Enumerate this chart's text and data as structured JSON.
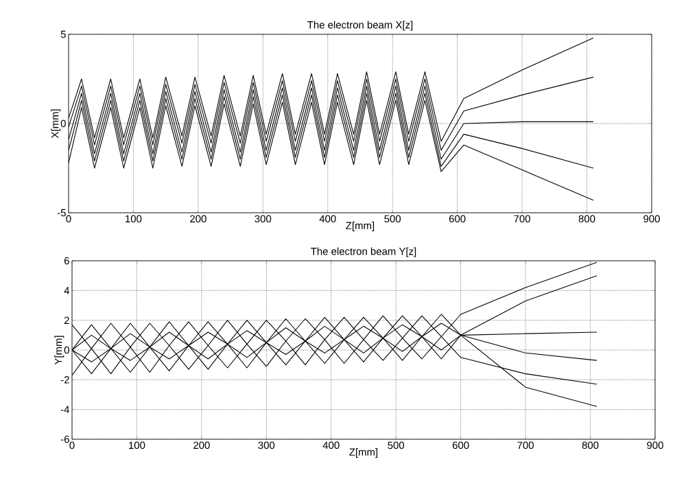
{
  "chart_data": [
    {
      "type": "line",
      "title": "The electron beam X[z]",
      "xlabel": "Z[mm]",
      "ylabel": "X[mm]",
      "xlim": [
        0,
        900
      ],
      "ylim": [
        -5,
        5
      ],
      "xticks": [
        0,
        100,
        200,
        300,
        400,
        500,
        600,
        700,
        800,
        900
      ],
      "yticks": [
        -5,
        0,
        5
      ],
      "grid": true,
      "x": [
        0,
        20,
        40,
        65,
        85,
        110,
        130,
        150,
        175,
        195,
        220,
        240,
        265,
        285,
        305,
        330,
        350,
        375,
        395,
        415,
        440,
        460,
        480,
        505,
        525,
        550,
        575,
        610,
        700,
        810
      ],
      "series": [
        {
          "color": "#000000",
          "values": [
            0.3,
            2.5,
            -0.8,
            2.5,
            -0.8,
            2.5,
            -0.8,
            2.6,
            -0.7,
            2.6,
            -0.7,
            2.7,
            -0.7,
            2.7,
            -0.6,
            2.8,
            -0.6,
            2.8,
            -0.6,
            2.8,
            -0.6,
            2.9,
            -0.6,
            2.9,
            -0.6,
            2.9,
            -1.0,
            1.4,
            3.0,
            4.8
          ]
        },
        {
          "color": "#000000",
          "values": [
            -0.2,
            2.1,
            -1.2,
            2.1,
            -1.2,
            2.1,
            -1.2,
            2.2,
            -1.1,
            2.2,
            -1.1,
            2.3,
            -1.1,
            2.3,
            -1.0,
            2.4,
            -1.0,
            2.4,
            -1.0,
            2.4,
            -1.0,
            2.5,
            -1.0,
            2.5,
            -1.0,
            2.5,
            -1.5,
            0.7,
            1.6,
            2.6
          ]
        },
        {
          "color": "#000000",
          "values": [
            -0.9,
            1.7,
            -1.7,
            1.7,
            -1.7,
            1.7,
            -1.7,
            1.8,
            -1.6,
            1.8,
            -1.6,
            1.9,
            -1.6,
            1.9,
            -1.5,
            2.0,
            -1.5,
            2.0,
            -1.5,
            2.0,
            -1.5,
            2.1,
            -1.5,
            2.1,
            -1.5,
            2.1,
            -2.0,
            0.0,
            0.1,
            0.1
          ]
        },
        {
          "color": "#000000",
          "values": [
            -1.5,
            1.3,
            -2.1,
            1.3,
            -2.1,
            1.3,
            -2.1,
            1.4,
            -2.0,
            1.4,
            -2.0,
            1.5,
            -2.0,
            1.5,
            -1.9,
            1.6,
            -1.9,
            1.6,
            -1.9,
            1.6,
            -1.9,
            1.7,
            -1.9,
            1.7,
            -1.9,
            1.7,
            -2.4,
            -0.6,
            -1.4,
            -2.5
          ]
        },
        {
          "color": "#000000",
          "values": [
            -2.2,
            0.9,
            -2.5,
            0.9,
            -2.5,
            0.9,
            -2.5,
            1.0,
            -2.4,
            1.0,
            -2.4,
            1.1,
            -2.4,
            1.1,
            -2.3,
            1.2,
            -2.3,
            1.2,
            -2.3,
            1.2,
            -2.3,
            1.3,
            -2.3,
            1.3,
            -2.3,
            1.3,
            -2.7,
            -1.2,
            -2.6,
            -4.3
          ]
        }
      ]
    },
    {
      "type": "line",
      "title": "The electron beam Y[z]",
      "xlabel": "Z[mm]",
      "ylabel": "Y[mm]",
      "xlim": [
        0,
        900
      ],
      "ylim": [
        -6,
        6
      ],
      "xticks": [
        0,
        100,
        200,
        300,
        400,
        500,
        600,
        700,
        800,
        900
      ],
      "yticks": [
        -6,
        -4,
        -2,
        0,
        2,
        4,
        6
      ],
      "grid": true,
      "x": [
        0,
        30,
        60,
        90,
        120,
        150,
        180,
        210,
        240,
        270,
        300,
        330,
        360,
        390,
        420,
        450,
        480,
        510,
        540,
        570,
        600,
        700,
        810
      ],
      "series": [
        {
          "color": "#000000",
          "values": [
            1.7,
            0.1,
            -1.6,
            0.2,
            1.8,
            0.3,
            -1.3,
            0.3,
            2.0,
            0.4,
            -1.1,
            0.6,
            2.1,
            0.7,
            -0.9,
            0.7,
            2.3,
            0.8,
            -0.6,
            0.9,
            2.4,
            4.2,
            5.9
          ]
        },
        {
          "color": "#000000",
          "values": [
            0.0,
            1.7,
            0.1,
            -1.5,
            0.2,
            1.9,
            0.3,
            -1.3,
            0.4,
            2.0,
            0.5,
            -1.0,
            0.6,
            2.2,
            0.7,
            -0.8,
            0.8,
            2.3,
            0.9,
            -0.6,
            1.0,
            3.3,
            5.0
          ]
        },
        {
          "color": "#000000",
          "values": [
            -1.7,
            0.1,
            1.8,
            0.2,
            -1.5,
            0.3,
            1.9,
            0.3,
            -1.2,
            0.4,
            2.0,
            0.6,
            -1.0,
            0.7,
            2.2,
            0.7,
            -0.7,
            0.8,
            2.3,
            0.9,
            -0.5,
            -1.6,
            -2.3
          ]
        },
        {
          "color": "#000000",
          "values": [
            0.0,
            -1.6,
            0.1,
            1.8,
            0.2,
            -1.4,
            0.3,
            1.9,
            0.4,
            -1.2,
            0.5,
            2.1,
            0.6,
            -0.9,
            0.7,
            2.2,
            0.8,
            -0.7,
            0.9,
            2.4,
            1.0,
            1.1,
            1.2
          ]
        },
        {
          "color": "#000000",
          "values": [
            0.0,
            1.0,
            0.1,
            -0.7,
            0.2,
            1.2,
            0.3,
            -0.6,
            0.4,
            1.3,
            0.5,
            -0.3,
            0.6,
            1.6,
            0.7,
            -0.2,
            0.8,
            1.7,
            0.9,
            0.0,
            1.0,
            -0.2,
            -0.7
          ]
        },
        {
          "color": "#000000",
          "values": [
            0.0,
            -0.8,
            0.1,
            1.1,
            0.2,
            -0.6,
            0.3,
            1.2,
            0.4,
            -0.5,
            0.5,
            1.5,
            0.6,
            -0.2,
            0.7,
            1.6,
            0.8,
            -0.1,
            0.9,
            1.8,
            1.0,
            -2.5,
            -3.8
          ]
        }
      ]
    }
  ]
}
